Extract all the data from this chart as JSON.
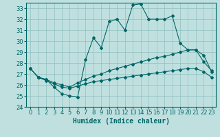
{
  "xlabel": "Humidex (Indice chaleur)",
  "bg_color": "#c0e0e0",
  "grid_color": "#90c0c0",
  "line_color": "#006666",
  "xlim": [
    -0.5,
    23.5
  ],
  "ylim": [
    24,
    33.5
  ],
  "xticks": [
    0,
    1,
    2,
    3,
    4,
    5,
    6,
    7,
    8,
    9,
    10,
    11,
    12,
    13,
    14,
    15,
    16,
    17,
    18,
    19,
    20,
    21,
    22,
    23
  ],
  "yticks": [
    24,
    25,
    26,
    27,
    28,
    29,
    30,
    31,
    32,
    33
  ],
  "line1_x": [
    0,
    1,
    2,
    3,
    4,
    5,
    6,
    7,
    8,
    9,
    10,
    11,
    12,
    13,
    14,
    15,
    16,
    17,
    18,
    19,
    20,
    21,
    22,
    23
  ],
  "line1_y": [
    27.5,
    26.7,
    26.5,
    25.8,
    25.2,
    25.0,
    24.9,
    28.3,
    30.3,
    29.4,
    31.8,
    32.0,
    31.0,
    33.3,
    33.4,
    32.0,
    32.0,
    32.0,
    32.3,
    29.8,
    29.2,
    29.2,
    28.1,
    27.3
  ],
  "line2_x": [
    0,
    1,
    2,
    3,
    4,
    5,
    6,
    7,
    8,
    9,
    10,
    11,
    12,
    13,
    14,
    15,
    16,
    17,
    18,
    19,
    20,
    21,
    22,
    23
  ],
  "line2_y": [
    27.5,
    26.7,
    26.5,
    26.2,
    26.0,
    25.8,
    26.2,
    26.5,
    26.8,
    27.0,
    27.3,
    27.5,
    27.7,
    27.9,
    28.1,
    28.3,
    28.5,
    28.6,
    28.8,
    29.0,
    29.2,
    29.2,
    28.7,
    27.2
  ],
  "line3_x": [
    0,
    1,
    2,
    3,
    4,
    5,
    6,
    7,
    8,
    9,
    10,
    11,
    12,
    13,
    14,
    15,
    16,
    17,
    18,
    19,
    20,
    21,
    22,
    23
  ],
  "line3_y": [
    27.5,
    26.7,
    26.4,
    26.1,
    25.8,
    25.7,
    25.9,
    26.1,
    26.3,
    26.4,
    26.5,
    26.6,
    26.7,
    26.8,
    26.9,
    27.0,
    27.1,
    27.2,
    27.3,
    27.4,
    27.5,
    27.5,
    27.2,
    26.7
  ],
  "xlabel_fontsize": 7,
  "tick_fontsize": 6
}
